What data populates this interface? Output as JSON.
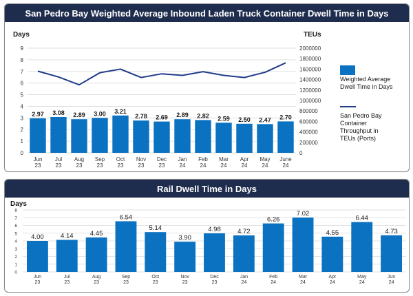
{
  "chart_data": [
    {
      "type": "bar",
      "title": "San Pedro Bay Weighted Average Inbound Laden Truck Container Dwell Time in Days",
      "ylabel": "Days",
      "y2label": "TEUs",
      "categories": [
        [
          "Jun",
          "23"
        ],
        [
          "Jul",
          "23"
        ],
        [
          "Aug",
          "23"
        ],
        [
          "Sep",
          "23"
        ],
        [
          "Oct",
          "23"
        ],
        [
          "Nov",
          "23"
        ],
        [
          "Dec",
          "23"
        ],
        [
          "Jan",
          "24"
        ],
        [
          "Feb",
          "24"
        ],
        [
          "Mar",
          "24"
        ],
        [
          "Apr",
          "24"
        ],
        [
          "May",
          "24"
        ],
        [
          "June",
          "24"
        ]
      ],
      "ylim": [
        0,
        9
      ],
      "yticks": [
        0,
        1,
        2,
        3,
        4,
        5,
        6,
        7,
        8,
        9
      ],
      "y2lim": [
        0,
        2000000
      ],
      "y2ticks": [
        0,
        200000,
        400000,
        600000,
        800000,
        1000000,
        1200000,
        1400000,
        1600000,
        1800000,
        2000000
      ],
      "grid": true,
      "legend_position": "right",
      "series": [
        {
          "name": "Weighted Average Dwell Time in Days",
          "type": "bar",
          "axis": "left",
          "color": "#0a72c1",
          "values": [
            2.97,
            3.08,
            2.89,
            3.0,
            3.21,
            2.78,
            2.69,
            2.89,
            2.82,
            2.59,
            2.5,
            2.47,
            2.7
          ],
          "labels": [
            "2.97",
            "3.08",
            "2.89",
            "3.00",
            "3.21",
            "2.78",
            "2.69",
            "2.89",
            "2.82",
            "2.59",
            "2.50",
            "2.47",
            "2.70"
          ]
        },
        {
          "name": "San Pedro Bay Container Throughput in TEUs (Ports)",
          "type": "line",
          "axis": "right",
          "color": "#1f3a8a",
          "values": [
            1560000,
            1450000,
            1300000,
            1530000,
            1600000,
            1440000,
            1510000,
            1480000,
            1550000,
            1480000,
            1440000,
            1540000,
            1720000
          ]
        }
      ]
    },
    {
      "type": "bar",
      "title": "Rail Dwell Time in Days",
      "ylabel": "Days",
      "categories": [
        [
          "Jun",
          "23"
        ],
        [
          "Jul",
          "23"
        ],
        [
          "Aug",
          "23"
        ],
        [
          "Sep",
          "23"
        ],
        [
          "Oct",
          "23"
        ],
        [
          "Nov",
          "23"
        ],
        [
          "Dec",
          "23"
        ],
        [
          "Jan",
          "24"
        ],
        [
          "Feb",
          "24"
        ],
        [
          "Mar",
          "24"
        ],
        [
          "Apr",
          "24"
        ],
        [
          "May",
          "24"
        ],
        [
          "Jun",
          "24"
        ]
      ],
      "ylim": [
        0,
        8
      ],
      "yticks": [
        0,
        1,
        2,
        3,
        4,
        5,
        6,
        7,
        8
      ],
      "grid": true,
      "series": [
        {
          "name": "",
          "type": "bar",
          "color": "#0a72c1",
          "values": [
            4.0,
            4.14,
            4.45,
            6.54,
            5.14,
            3.9,
            4.98,
            4.72,
            6.26,
            7.02,
            4.55,
            6.44,
            4.73
          ],
          "labels": [
            "4.00",
            "4.14",
            "4.45",
            "6.54",
            "5.14",
            "3.90",
            "4.98",
            "4.72",
            "6.26",
            "7.02",
            "4.55",
            "6.44",
            "4.73"
          ]
        }
      ]
    }
  ]
}
